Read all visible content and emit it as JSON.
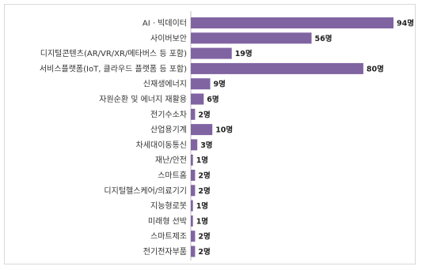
{
  "chart_data": {
    "type": "bar",
    "orientation": "horizontal",
    "categories": [
      "AI · 빅데이터",
      "사이버보안",
      "디지털콘텐츠(AR/VR/XR/메타버스 등 포함)",
      "서비스플랫폼(IoT, 클라우드 플랫폼 등 포함)",
      "신재생에너지",
      "자원순환 및 에너지 재활용",
      "전기수소차",
      "산업용기계",
      "차세대이동통신",
      "재난/안전",
      "스마트홈",
      "디지털헬스케어/의료기기",
      "지능형로봇",
      "미래형 선박",
      "스마트제조",
      "전기전자부품"
    ],
    "values": [
      94,
      56,
      19,
      80,
      9,
      6,
      2,
      10,
      3,
      1,
      2,
      2,
      1,
      1,
      2,
      2
    ],
    "value_labels": [
      "94명",
      "56명",
      "19명",
      "80명",
      "9명",
      "6명",
      "2명",
      "10명",
      "3명",
      "1명",
      "2명",
      "2명",
      "1명",
      "1명",
      "2명",
      "2명"
    ],
    "xlim": [
      0,
      94
    ],
    "bar_color": "#8064a2",
    "grid": false,
    "legend": false
  }
}
